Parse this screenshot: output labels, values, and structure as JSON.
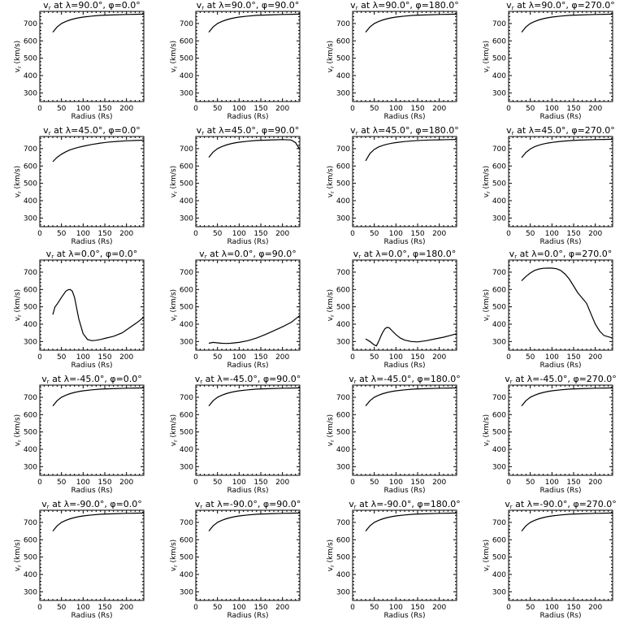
{
  "chart_data": [
    {
      "type": "line",
      "title": "vr at λ=90.0°, φ=0.0°",
      "title_parts": {
        "var": "v",
        "sub": "r",
        "lat": "90.0",
        "lon": "0.0"
      },
      "xlabel": "Radius (Rs)",
      "ylabel": "vr (km/s)",
      "xlim": [
        0,
        240
      ],
      "ylim": [
        250,
        770
      ],
      "x": [
        30,
        40,
        50,
        60,
        70,
        80,
        90,
        100,
        120,
        140,
        160,
        180,
        200,
        220,
        240
      ],
      "y": [
        650,
        680,
        700,
        712,
        721,
        728,
        733,
        737,
        743,
        747,
        749,
        751,
        752,
        753,
        754
      ]
    },
    {
      "type": "line",
      "title": "vr at λ=90.0°, φ=90.0°",
      "title_parts": {
        "var": "v",
        "sub": "r",
        "lat": "90.0",
        "lon": "90.0"
      },
      "xlabel": "Radius (Rs)",
      "ylabel": "vr (km/s)",
      "xlim": [
        0,
        240
      ],
      "ylim": [
        250,
        770
      ],
      "x": [
        30,
        40,
        50,
        60,
        70,
        80,
        90,
        100,
        120,
        140,
        160,
        180,
        200,
        220,
        240
      ],
      "y": [
        650,
        680,
        700,
        712,
        721,
        728,
        733,
        737,
        743,
        747,
        749,
        751,
        752,
        753,
        754
      ]
    },
    {
      "type": "line",
      "title": "vr at λ=90.0°, φ=180.0°",
      "title_parts": {
        "var": "v",
        "sub": "r",
        "lat": "90.0",
        "lon": "180.0"
      },
      "xlabel": "Radius (Rs)",
      "ylabel": "vr (km/s)",
      "xlim": [
        0,
        240
      ],
      "ylim": [
        250,
        770
      ],
      "x": [
        30,
        40,
        50,
        60,
        70,
        80,
        90,
        100,
        120,
        140,
        160,
        180,
        200,
        220,
        240
      ],
      "y": [
        650,
        680,
        700,
        712,
        721,
        728,
        733,
        737,
        743,
        747,
        749,
        751,
        752,
        753,
        754
      ]
    },
    {
      "type": "line",
      "title": "vr at λ=90.0°, φ=270.0°",
      "title_parts": {
        "var": "v",
        "sub": "r",
        "lat": "90.0",
        "lon": "270.0"
      },
      "xlabel": "Radius (Rs)",
      "ylabel": "vr (km/s)",
      "xlim": [
        0,
        240
      ],
      "ylim": [
        250,
        770
      ],
      "x": [
        30,
        40,
        50,
        60,
        70,
        80,
        90,
        100,
        120,
        140,
        160,
        180,
        200,
        220,
        240
      ],
      "y": [
        650,
        680,
        700,
        712,
        721,
        728,
        733,
        737,
        743,
        747,
        749,
        751,
        752,
        753,
        754
      ]
    },
    {
      "type": "line",
      "title": "vr at λ=45.0°, φ=0.0°",
      "title_parts": {
        "var": "v",
        "sub": "r",
        "lat": "45.0",
        "lon": "0.0"
      },
      "xlabel": "Radius (Rs)",
      "ylabel": "vr (km/s)",
      "xlim": [
        0,
        240
      ],
      "ylim": [
        250,
        770
      ],
      "x": [
        30,
        40,
        50,
        60,
        70,
        80,
        90,
        100,
        120,
        140,
        160,
        180,
        200,
        220,
        240
      ],
      "y": [
        625,
        650,
        668,
        682,
        693,
        701,
        708,
        714,
        724,
        732,
        738,
        742,
        745,
        747,
        749
      ]
    },
    {
      "type": "line",
      "title": "vr at λ=45.0°, φ=90.0°",
      "title_parts": {
        "var": "v",
        "sub": "r",
        "lat": "45.0",
        "lon": "90.0"
      },
      "xlabel": "Radius (Rs)",
      "ylabel": "vr (km/s)",
      "xlim": [
        0,
        240
      ],
      "ylim": [
        250,
        770
      ],
      "x": [
        30,
        40,
        50,
        60,
        70,
        80,
        90,
        100,
        120,
        140,
        160,
        180,
        200,
        220,
        230,
        240
      ],
      "y": [
        650,
        680,
        700,
        712,
        721,
        728,
        733,
        737,
        743,
        747,
        749,
        751,
        752,
        750,
        735,
        695
      ]
    },
    {
      "type": "line",
      "title": "vr at λ=45.0°, φ=180.0°",
      "title_parts": {
        "var": "v",
        "sub": "r",
        "lat": "45.0",
        "lon": "180.0"
      },
      "xlabel": "Radius (Rs)",
      "ylabel": "vr (km/s)",
      "xlim": [
        0,
        240
      ],
      "ylim": [
        250,
        770
      ],
      "x": [
        30,
        40,
        50,
        60,
        70,
        80,
        90,
        100,
        120,
        140,
        160,
        180,
        200,
        220,
        240
      ],
      "y": [
        630,
        672,
        696,
        710,
        719,
        726,
        731,
        735,
        741,
        745,
        748,
        750,
        751,
        752,
        753
      ]
    },
    {
      "type": "line",
      "title": "vr at λ=45.0°, φ=270.0°",
      "title_parts": {
        "var": "v",
        "sub": "r",
        "lat": "45.0",
        "lon": "270.0"
      },
      "xlabel": "Radius (Rs)",
      "ylabel": "vr (km/s)",
      "xlim": [
        0,
        240
      ],
      "ylim": [
        250,
        770
      ],
      "x": [
        30,
        40,
        50,
        60,
        70,
        80,
        90,
        100,
        120,
        140,
        160,
        180,
        200,
        220,
        240
      ],
      "y": [
        648,
        678,
        698,
        711,
        720,
        727,
        732,
        736,
        742,
        746,
        749,
        751,
        752,
        753,
        754
      ]
    },
    {
      "type": "line",
      "title": "vr at λ=0.0°, φ=0.0°",
      "title_parts": {
        "var": "v",
        "sub": "r",
        "lat": "0.0",
        "lon": "0.0"
      },
      "xlabel": "Radius (Rs)",
      "ylabel": "vr (km/s)",
      "xlim": [
        0,
        240
      ],
      "ylim": [
        250,
        770
      ],
      "x": [
        30,
        35,
        40,
        50,
        60,
        65,
        70,
        75,
        80,
        90,
        100,
        110,
        120,
        130,
        140,
        150,
        170,
        190,
        210,
        225,
        240
      ],
      "y": [
        455,
        500,
        515,
        555,
        590,
        598,
        600,
        590,
        555,
        430,
        345,
        312,
        305,
        307,
        312,
        318,
        330,
        350,
        385,
        410,
        440
      ]
    },
    {
      "type": "line",
      "title": "vr at λ=0.0°, φ=90.0°",
      "title_parts": {
        "var": "v",
        "sub": "r",
        "lat": "0.0",
        "lon": "90.0"
      },
      "xlabel": "Radius (Rs)",
      "ylabel": "vr (km/s)",
      "xlim": [
        0,
        240
      ],
      "ylim": [
        250,
        770
      ],
      "x": [
        30,
        40,
        50,
        60,
        70,
        80,
        100,
        120,
        140,
        160,
        180,
        200,
        220,
        240
      ],
      "y": [
        290,
        295,
        292,
        290,
        289,
        290,
        295,
        305,
        320,
        340,
        362,
        385,
        410,
        450
      ]
    },
    {
      "type": "line",
      "title": "vr at λ=0.0°, φ=180.0°",
      "title_parts": {
        "var": "v",
        "sub": "r",
        "lat": "0.0",
        "lon": "180.0"
      },
      "xlabel": "Radius (Rs)",
      "ylabel": "vr (km/s)",
      "xlim": [
        0,
        240
      ],
      "ylim": [
        250,
        770
      ],
      "x": [
        30,
        40,
        45,
        50,
        55,
        60,
        65,
        70,
        75,
        80,
        85,
        90,
        100,
        110,
        120,
        135,
        150,
        170,
        190,
        210,
        225,
        240
      ],
      "y": [
        315,
        300,
        290,
        280,
        275,
        300,
        330,
        355,
        375,
        382,
        378,
        365,
        340,
        320,
        308,
        300,
        298,
        305,
        315,
        325,
        335,
        345
      ]
    },
    {
      "type": "line",
      "title": "vr at λ=0.0°, φ=270.0°",
      "title_parts": {
        "var": "v",
        "sub": "r",
        "lat": "0.0",
        "lon": "270.0"
      },
      "xlabel": "Radius (Rs)",
      "ylabel": "vr (km/s)",
      "xlim": [
        0,
        240
      ],
      "ylim": [
        250,
        770
      ],
      "x": [
        30,
        40,
        50,
        60,
        70,
        80,
        90,
        100,
        110,
        120,
        130,
        140,
        150,
        160,
        170,
        180,
        190,
        200,
        210,
        220,
        240
      ],
      "y": [
        650,
        675,
        695,
        710,
        718,
        722,
        723,
        723,
        720,
        710,
        690,
        660,
        620,
        580,
        550,
        520,
        460,
        400,
        360,
        335,
        320
      ]
    },
    {
      "type": "line",
      "title": "vr at λ=-45.0°, φ=0.0°",
      "title_parts": {
        "var": "v",
        "sub": "r",
        "lat": "-45.0",
        "lon": "0.0"
      },
      "xlabel": "Radius (Rs)",
      "ylabel": "vr (km/s)",
      "xlim": [
        0,
        240
      ],
      "ylim": [
        250,
        770
      ],
      "x": [
        30,
        40,
        50,
        60,
        70,
        80,
        90,
        100,
        120,
        140,
        160,
        180,
        200,
        220,
        240
      ],
      "y": [
        650,
        680,
        700,
        712,
        721,
        728,
        733,
        737,
        743,
        747,
        749,
        751,
        752,
        753,
        754
      ]
    },
    {
      "type": "line",
      "title": "vr at λ=-45.0°, φ=90.0°",
      "title_parts": {
        "var": "v",
        "sub": "r",
        "lat": "-45.0",
        "lon": "90.0"
      },
      "xlabel": "Radius (Rs)",
      "ylabel": "vr (km/s)",
      "xlim": [
        0,
        240
      ],
      "ylim": [
        250,
        770
      ],
      "x": [
        30,
        40,
        50,
        60,
        70,
        80,
        90,
        100,
        120,
        140,
        160,
        180,
        200,
        220,
        240
      ],
      "y": [
        650,
        680,
        700,
        712,
        721,
        728,
        733,
        737,
        743,
        747,
        749,
        751,
        752,
        753,
        754
      ]
    },
    {
      "type": "line",
      "title": "vr at λ=-45.0°, φ=180.0°",
      "title_parts": {
        "var": "v",
        "sub": "r",
        "lat": "-45.0",
        "lon": "180.0"
      },
      "xlabel": "Radius (Rs)",
      "ylabel": "vr (km/s)",
      "xlim": [
        0,
        240
      ],
      "ylim": [
        250,
        770
      ],
      "x": [
        30,
        40,
        50,
        60,
        70,
        80,
        90,
        100,
        120,
        140,
        160,
        180,
        200,
        220,
        240
      ],
      "y": [
        650,
        680,
        700,
        712,
        721,
        728,
        733,
        737,
        743,
        747,
        749,
        751,
        752,
        753,
        754
      ]
    },
    {
      "type": "line",
      "title": "vr at λ=-45.0°, φ=270.0°",
      "title_parts": {
        "var": "v",
        "sub": "r",
        "lat": "-45.0",
        "lon": "270.0"
      },
      "xlabel": "Radius (Rs)",
      "ylabel": "vr (km/s)",
      "xlim": [
        0,
        240
      ],
      "ylim": [
        250,
        770
      ],
      "x": [
        30,
        40,
        50,
        60,
        70,
        80,
        90,
        100,
        120,
        140,
        160,
        180,
        200,
        220,
        240
      ],
      "y": [
        650,
        680,
        700,
        712,
        721,
        728,
        733,
        737,
        743,
        747,
        749,
        751,
        752,
        753,
        754
      ]
    },
    {
      "type": "line",
      "title": "vr at λ=-90.0°, φ=0.0°",
      "title_parts": {
        "var": "v",
        "sub": "r",
        "lat": "-90.0",
        "lon": "0.0"
      },
      "xlabel": "Radius (Rs)",
      "ylabel": "vr (km/s)",
      "xlim": [
        0,
        240
      ],
      "ylim": [
        250,
        770
      ],
      "x": [
        30,
        40,
        50,
        60,
        70,
        80,
        90,
        100,
        120,
        140,
        160,
        180,
        200,
        220,
        240
      ],
      "y": [
        650,
        680,
        700,
        712,
        721,
        728,
        733,
        737,
        743,
        747,
        749,
        751,
        752,
        753,
        754
      ]
    },
    {
      "type": "line",
      "title": "vr at λ=-90.0°, φ=90.0°",
      "title_parts": {
        "var": "v",
        "sub": "r",
        "lat": "-90.0",
        "lon": "90.0"
      },
      "xlabel": "Radius (Rs)",
      "ylabel": "vr (km/s)",
      "xlim": [
        0,
        240
      ],
      "ylim": [
        250,
        770
      ],
      "x": [
        30,
        40,
        50,
        60,
        70,
        80,
        90,
        100,
        120,
        140,
        160,
        180,
        200,
        220,
        240
      ],
      "y": [
        650,
        680,
        700,
        712,
        721,
        728,
        733,
        737,
        743,
        747,
        749,
        751,
        752,
        753,
        754
      ]
    },
    {
      "type": "line",
      "title": "vr at λ=-90.0°, φ=180.0°",
      "title_parts": {
        "var": "v",
        "sub": "r",
        "lat": "-90.0",
        "lon": "180.0"
      },
      "xlabel": "Radius (Rs)",
      "ylabel": "vr (km/s)",
      "xlim": [
        0,
        240
      ],
      "ylim": [
        250,
        770
      ],
      "x": [
        30,
        40,
        50,
        60,
        70,
        80,
        90,
        100,
        120,
        140,
        160,
        180,
        200,
        220,
        240
      ],
      "y": [
        650,
        680,
        700,
        712,
        721,
        728,
        733,
        737,
        743,
        747,
        749,
        751,
        752,
        753,
        754
      ]
    },
    {
      "type": "line",
      "title": "vr at λ=-90.0°, φ=270.0°",
      "title_parts": {
        "var": "v",
        "sub": "r",
        "lat": "-90.0",
        "lon": "270.0"
      },
      "xlabel": "Radius (Rs)",
      "ylabel": "vr (km/s)",
      "xlim": [
        0,
        240
      ],
      "ylim": [
        250,
        770
      ],
      "x": [
        30,
        40,
        50,
        60,
        70,
        80,
        90,
        100,
        120,
        140,
        160,
        180,
        200,
        220,
        240
      ],
      "y": [
        650,
        680,
        700,
        712,
        721,
        728,
        733,
        737,
        743,
        747,
        749,
        751,
        752,
        753,
        754
      ]
    }
  ],
  "axes_common": {
    "xticks": [
      0,
      50,
      100,
      150,
      200
    ],
    "yticks": [
      300,
      400,
      500,
      600,
      700
    ],
    "xlabel": "Radius (Rs)",
    "ylabel": "vr (km/s)",
    "ylabel_parts": {
      "var": "v",
      "sub": "r",
      "unit": "(km/s)"
    },
    "title_connector": "at",
    "lat_symbol": "λ=",
    "lon_symbol": "φ=",
    "degree": "°",
    "line_color": "#000000"
  }
}
